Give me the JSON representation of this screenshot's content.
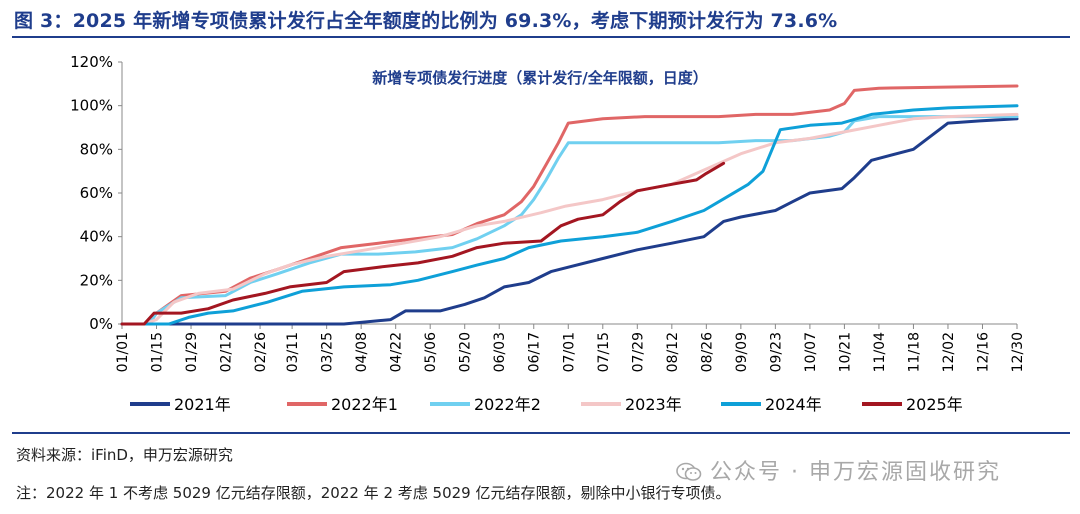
{
  "figure": {
    "title": "图 3：2025 年新增专项债累计发行占全年额度的比例为 69.3%，考虑下期预计发行为 73.6%",
    "source": "资料来源：iFinD，申万宏源研究",
    "note": "注：2022 年 1 不考虑 5029 亿元结存限额，2022 年 2 考虑 5029 亿元结存限额，剔除中小银行专项债。",
    "watermark": "公众号 · 申万宏源固收研究",
    "watermark_icon": "wechat-icon"
  },
  "chart_data": {
    "type": "line",
    "title": "新增专项债发行进度（累计发行/全年限额，日度）",
    "xlabel": "",
    "ylabel": "",
    "x_axis": "day of year (MM/DD)",
    "x_ticks": [
      "01/01",
      "01/15",
      "01/29",
      "02/12",
      "02/26",
      "03/11",
      "03/25",
      "04/08",
      "04/22",
      "05/06",
      "05/20",
      "06/03",
      "06/17",
      "07/01",
      "07/15",
      "07/29",
      "08/12",
      "08/26",
      "09/09",
      "09/23",
      "10/07",
      "10/21",
      "11/04",
      "11/18",
      "12/02",
      "12/16",
      "12/30"
    ],
    "y_ticks": [
      "0%",
      "20%",
      "40%",
      "60%",
      "80%",
      "100%",
      "120%"
    ],
    "ylim": [
      0,
      120
    ],
    "y_unit": "%",
    "grid": false,
    "legend_position": "bottom",
    "series": [
      {
        "name": "2021年",
        "color": "#1f3d8c",
        "points": [
          [
            "01/01",
            0
          ],
          [
            "03/01",
            0
          ],
          [
            "04/01",
            0
          ],
          [
            "04/20",
            2
          ],
          [
            "04/26",
            6
          ],
          [
            "05/10",
            6
          ],
          [
            "05/20",
            9
          ],
          [
            "05/28",
            12
          ],
          [
            "06/05",
            17
          ],
          [
            "06/15",
            19
          ],
          [
            "06/24",
            24
          ],
          [
            "07/01",
            26
          ],
          [
            "07/15",
            30
          ],
          [
            "07/29",
            34
          ],
          [
            "08/12",
            37
          ],
          [
            "08/25",
            40
          ],
          [
            "09/02",
            47
          ],
          [
            "09/09",
            49
          ],
          [
            "09/23",
            52
          ],
          [
            "09/30",
            56
          ],
          [
            "10/07",
            60
          ],
          [
            "10/20",
            62
          ],
          [
            "10/25",
            67
          ],
          [
            "11/01",
            75
          ],
          [
            "11/18",
            80
          ],
          [
            "11/25",
            86
          ],
          [
            "12/02",
            92
          ],
          [
            "12/15",
            93
          ],
          [
            "12/30",
            94
          ]
        ]
      },
      {
        "name": "2022年1",
        "color": "#e06666",
        "points": [
          [
            "01/01",
            0
          ],
          [
            "01/12",
            0
          ],
          [
            "01/15",
            5
          ],
          [
            "01/25",
            13
          ],
          [
            "02/12",
            15
          ],
          [
            "02/22",
            21
          ],
          [
            "03/05",
            25
          ],
          [
            "03/18",
            30
          ],
          [
            "03/31",
            35
          ],
          [
            "04/15",
            37
          ],
          [
            "04/30",
            39
          ],
          [
            "05/15",
            41
          ],
          [
            "05/25",
            46
          ],
          [
            "06/05",
            50
          ],
          [
            "06/12",
            56
          ],
          [
            "06/17",
            63
          ],
          [
            "06/22",
            73
          ],
          [
            "06/27",
            83
          ],
          [
            "07/01",
            92
          ],
          [
            "07/15",
            94
          ],
          [
            "08/01",
            95
          ],
          [
            "08/31",
            95
          ],
          [
            "09/15",
            96
          ],
          [
            "09/30",
            96
          ],
          [
            "10/15",
            98
          ],
          [
            "10/21",
            101
          ],
          [
            "10/25",
            107
          ],
          [
            "11/04",
            108
          ],
          [
            "12/30",
            109
          ]
        ]
      },
      {
        "name": "2022年2",
        "color": "#70d0f0",
        "points": [
          [
            "01/01",
            0
          ],
          [
            "01/12",
            0
          ],
          [
            "01/15",
            5
          ],
          [
            "01/25",
            12
          ],
          [
            "02/12",
            13
          ],
          [
            "02/22",
            19
          ],
          [
            "03/05",
            23
          ],
          [
            "03/18",
            28
          ],
          [
            "03/31",
            32
          ],
          [
            "04/15",
            32
          ],
          [
            "04/30",
            33
          ],
          [
            "05/15",
            35
          ],
          [
            "05/25",
            39
          ],
          [
            "06/05",
            45
          ],
          [
            "06/12",
            50
          ],
          [
            "06/17",
            57
          ],
          [
            "06/22",
            66
          ],
          [
            "06/27",
            76
          ],
          [
            "07/01",
            83
          ],
          [
            "07/15",
            83
          ],
          [
            "08/01",
            83
          ],
          [
            "08/31",
            83
          ],
          [
            "09/15",
            84
          ],
          [
            "09/30",
            84
          ],
          [
            "10/15",
            86
          ],
          [
            "10/21",
            88
          ],
          [
            "10/25",
            93
          ],
          [
            "11/04",
            95
          ],
          [
            "12/30",
            95
          ]
        ]
      },
      {
        "name": "2023年",
        "color": "#f4c7c7",
        "points": [
          [
            "01/01",
            0
          ],
          [
            "01/10",
            0
          ],
          [
            "01/15",
            2
          ],
          [
            "01/22",
            10
          ],
          [
            "02/01",
            14
          ],
          [
            "02/15",
            16
          ],
          [
            "02/28",
            23
          ],
          [
            "03/10",
            27
          ],
          [
            "03/25",
            31
          ],
          [
            "04/10",
            34
          ],
          [
            "04/25",
            37
          ],
          [
            "05/10",
            40
          ],
          [
            "05/25",
            45
          ],
          [
            "06/05",
            47
          ],
          [
            "06/20",
            51
          ],
          [
            "06/30",
            54
          ],
          [
            "07/15",
            57
          ],
          [
            "07/29",
            61
          ],
          [
            "08/12",
            64
          ],
          [
            "08/26",
            71
          ],
          [
            "09/09",
            78
          ],
          [
            "09/23",
            83
          ],
          [
            "10/07",
            85
          ],
          [
            "10/21",
            88
          ],
          [
            "11/04",
            91
          ],
          [
            "11/18",
            94
          ],
          [
            "12/02",
            95
          ],
          [
            "12/30",
            96
          ]
        ]
      },
      {
        "name": "2024年",
        "color": "#0ea0d8",
        "points": [
          [
            "01/01",
            0
          ],
          [
            "01/20",
            0
          ],
          [
            "01/28",
            3
          ],
          [
            "02/05",
            5
          ],
          [
            "02/15",
            6
          ],
          [
            "03/01",
            10
          ],
          [
            "03/15",
            15
          ],
          [
            "04/01",
            17
          ],
          [
            "04/20",
            18
          ],
          [
            "05/01",
            20
          ],
          [
            "05/15",
            24
          ],
          [
            "05/25",
            27
          ],
          [
            "06/05",
            30
          ],
          [
            "06/15",
            35
          ],
          [
            "06/28",
            38
          ],
          [
            "07/15",
            40
          ],
          [
            "07/29",
            42
          ],
          [
            "08/12",
            47
          ],
          [
            "08/25",
            52
          ],
          [
            "09/03",
            58
          ],
          [
            "09/12",
            64
          ],
          [
            "09/18",
            70
          ],
          [
            "09/25",
            89
          ],
          [
            "10/07",
            91
          ],
          [
            "10/20",
            92
          ],
          [
            "11/01",
            96
          ],
          [
            "11/18",
            98
          ],
          [
            "12/02",
            99
          ],
          [
            "12/30",
            100
          ]
        ]
      },
      {
        "name": "2025年",
        "color": "#a31621",
        "points": [
          [
            "01/01",
            0
          ],
          [
            "01/10",
            0
          ],
          [
            "01/14",
            5
          ],
          [
            "01/25",
            5
          ],
          [
            "02/05",
            7
          ],
          [
            "02/15",
            11
          ],
          [
            "02/28",
            14
          ],
          [
            "03/10",
            17
          ],
          [
            "03/25",
            19
          ],
          [
            "04/01",
            24
          ],
          [
            "04/15",
            26
          ],
          [
            "05/01",
            28
          ],
          [
            "05/15",
            31
          ],
          [
            "05/25",
            35
          ],
          [
            "06/05",
            37
          ],
          [
            "06/20",
            38
          ],
          [
            "06/28",
            45
          ],
          [
            "07/05",
            48
          ],
          [
            "07/15",
            50
          ],
          [
            "07/22",
            56
          ],
          [
            "07/29",
            61
          ],
          [
            "08/12",
            64
          ],
          [
            "08/22",
            66
          ],
          [
            "08/26",
            69
          ],
          [
            "09/02",
            73.6
          ]
        ]
      }
    ]
  }
}
